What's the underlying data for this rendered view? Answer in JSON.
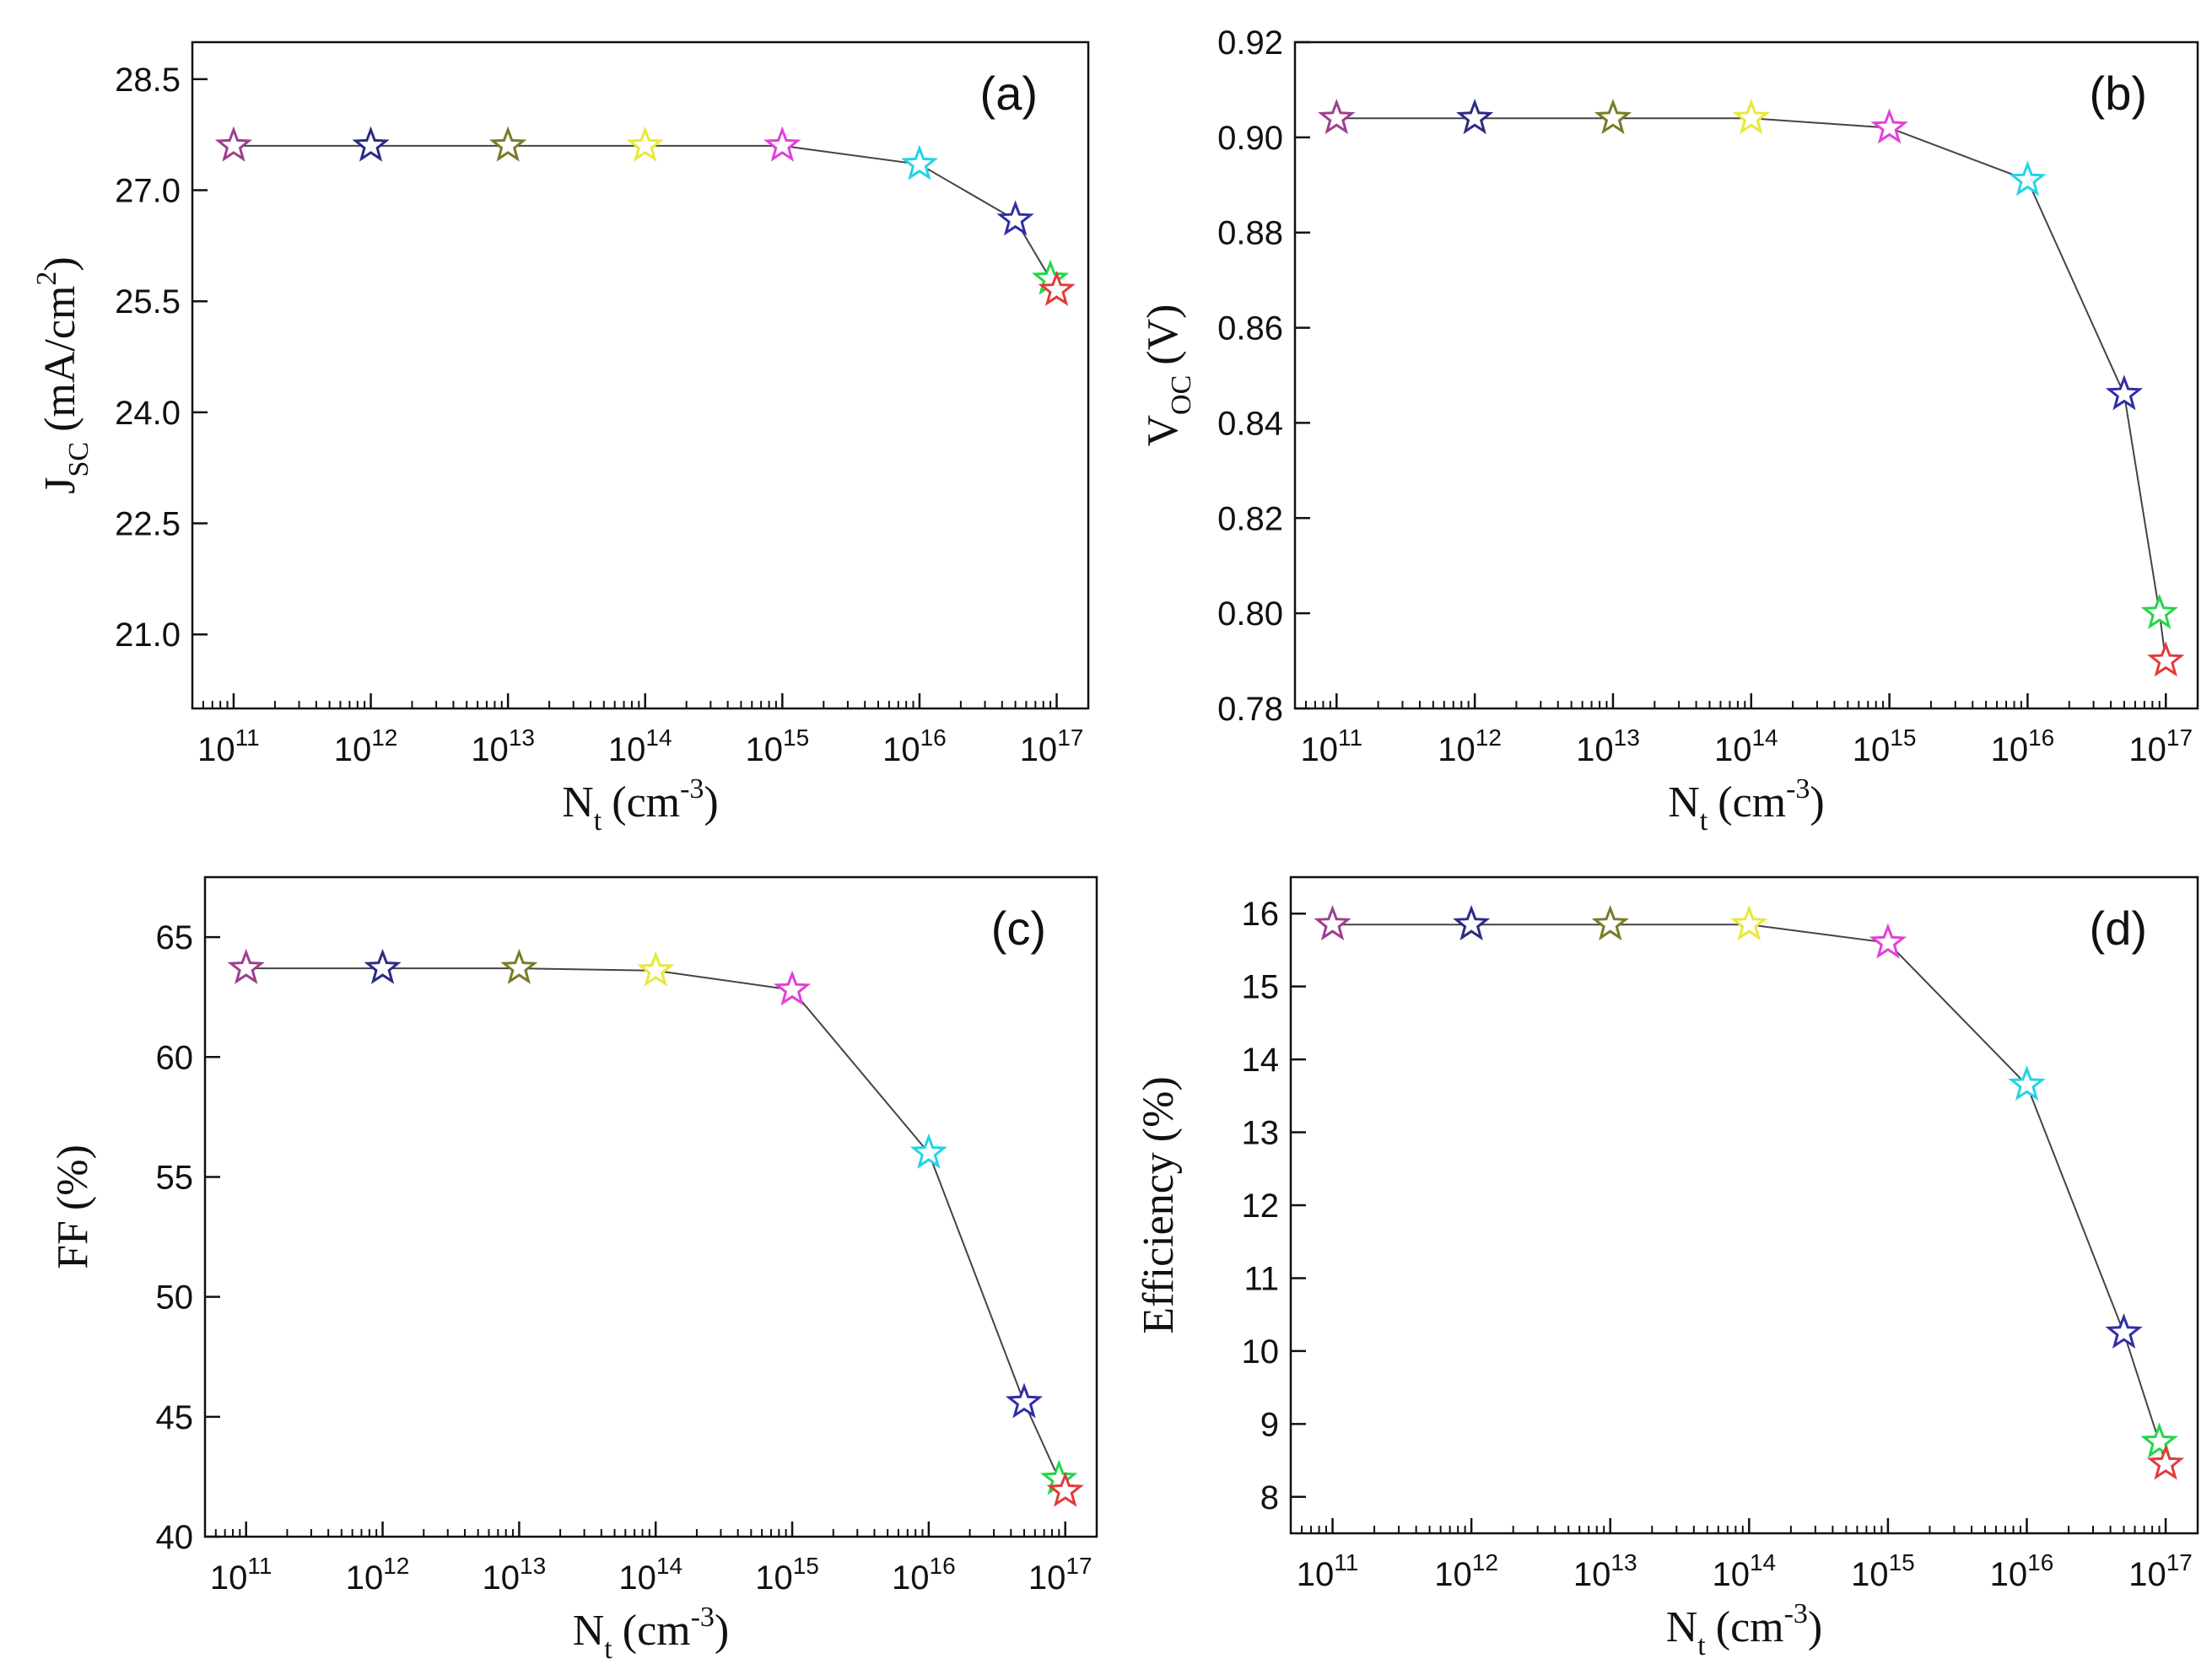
{
  "chart_data": [
    {
      "type": "line",
      "panel_label": "(a)",
      "xlabel": "N_t (cm^-3)",
      "xlabel_main": "N",
      "xlabel_sub": "t",
      "xlabel_unit": "(cm",
      "xlabel_sup": "-3",
      "xlabel_close": ")",
      "ylabel": "J_SC (mA/cm^2)",
      "ylabel_main": "J",
      "ylabel_sub": "SC",
      "ylabel_unit": "(mA/cm",
      "ylabel_sup": "2",
      "ylabel_close": ")",
      "xscale": "log",
      "xlim": [
        50000000000.0,
        1.7e+17
      ],
      "ylim": [
        20.0,
        29.0
      ],
      "xticks": [
        100000000000.0,
        1000000000000.0,
        10000000000000.0,
        100000000000000.0,
        1000000000000000.0,
        1e+16,
        1e+17
      ],
      "xtick_labels": [
        {
          "base": "10",
          "exp": "11"
        },
        {
          "base": "10",
          "exp": "12"
        },
        {
          "base": "10",
          "exp": "13"
        },
        {
          "base": "10",
          "exp": "14"
        },
        {
          "base": "10",
          "exp": "15"
        },
        {
          "base": "10",
          "exp": "16"
        },
        {
          "base": "10",
          "exp": "17"
        }
      ],
      "yticks": [
        21.0,
        22.5,
        24.0,
        25.5,
        27.0,
        28.5
      ],
      "ytick_labels": [
        "21.0",
        "22.5",
        "24.0",
        "25.5",
        "27.0",
        "28.5"
      ],
      "x": [
        100000000000.0,
        1000000000000.0,
        10000000000000.0,
        100000000000000.0,
        1000000000000000.0,
        1e+16,
        5e+16,
        9e+16,
        1e+17
      ],
      "values": [
        27.6,
        27.6,
        27.6,
        27.6,
        27.6,
        27.35,
        26.6,
        25.8,
        25.65
      ]
    },
    {
      "type": "line",
      "panel_label": "(b)",
      "xlabel": "N_t (cm^-3)",
      "xlabel_main": "N",
      "xlabel_sub": "t",
      "xlabel_unit": "(cm",
      "xlabel_sup": "-3",
      "xlabel_close": ")",
      "ylabel": "V_OC (V)",
      "ylabel_main": "V",
      "ylabel_sub": "OC",
      "ylabel_unit": "(V)",
      "xscale": "log",
      "xlim": [
        50000000000.0,
        1.7e+17
      ],
      "ylim": [
        0.78,
        0.92
      ],
      "xticks": [
        100000000000.0,
        1000000000000.0,
        10000000000000.0,
        100000000000000.0,
        1000000000000000.0,
        1e+16,
        1e+17
      ],
      "xtick_labels": [
        {
          "base": "10",
          "exp": "11"
        },
        {
          "base": "10",
          "exp": "12"
        },
        {
          "base": "10",
          "exp": "13"
        },
        {
          "base": "10",
          "exp": "14"
        },
        {
          "base": "10",
          "exp": "15"
        },
        {
          "base": "10",
          "exp": "16"
        },
        {
          "base": "10",
          "exp": "17"
        }
      ],
      "yticks": [
        0.78,
        0.8,
        0.82,
        0.84,
        0.86,
        0.88,
        0.9,
        0.92
      ],
      "ytick_labels": [
        "0.78",
        "0.80",
        "0.82",
        "0.84",
        "0.86",
        "0.88",
        "0.90",
        "0.92"
      ],
      "x": [
        100000000000.0,
        1000000000000.0,
        10000000000000.0,
        100000000000000.0,
        1000000000000000.0,
        1e+16,
        5e+16,
        9e+16,
        1e+17
      ],
      "values": [
        0.904,
        0.904,
        0.904,
        0.904,
        0.902,
        0.891,
        0.846,
        0.8,
        0.79
      ]
    },
    {
      "type": "line",
      "panel_label": "(c)",
      "xlabel": "N_t (cm^-3)",
      "xlabel_main": "N",
      "xlabel_sub": "t",
      "xlabel_unit": "(cm",
      "xlabel_sup": "-3",
      "xlabel_close": ")",
      "ylabel": "FF (%)",
      "ylabel_main": "FF",
      "ylabel_unit": "(%)",
      "xscale": "log",
      "xlim": [
        50000000000.0,
        1.7e+17
      ],
      "ylim": [
        40,
        67.5
      ],
      "xticks": [
        100000000000.0,
        1000000000000.0,
        10000000000000.0,
        100000000000000.0,
        1000000000000000.0,
        1e+16,
        1e+17
      ],
      "xtick_labels": [
        {
          "base": "10",
          "exp": "11"
        },
        {
          "base": "10",
          "exp": "12"
        },
        {
          "base": "10",
          "exp": "13"
        },
        {
          "base": "10",
          "exp": "14"
        },
        {
          "base": "10",
          "exp": "15"
        },
        {
          "base": "10",
          "exp": "16"
        },
        {
          "base": "10",
          "exp": "17"
        }
      ],
      "yticks": [
        40,
        45,
        50,
        55,
        60,
        65
      ],
      "ytick_labels": [
        "40",
        "45",
        "50",
        "55",
        "60",
        "65"
      ],
      "x": [
        100000000000.0,
        1000000000000.0,
        10000000000000.0,
        100000000000000.0,
        1000000000000000.0,
        1e+16,
        5e+16,
        9e+16,
        1e+17
      ],
      "values": [
        63.7,
        63.7,
        63.7,
        63.6,
        62.8,
        56.0,
        45.6,
        42.4,
        41.9
      ]
    },
    {
      "type": "line",
      "panel_label": "(d)",
      "xlabel": "N_t (cm^-3)",
      "xlabel_main": "N",
      "xlabel_sub": "t",
      "xlabel_unit": "(cm",
      "xlabel_sup": "-3",
      "xlabel_close": ")",
      "ylabel": "Efficiency (%)",
      "ylabel_main": "Efficiency",
      "ylabel_unit": "(%)",
      "xscale": "log",
      "xlim": [
        50000000000.0,
        1.7e+17
      ],
      "ylim": [
        7.5,
        16.5
      ],
      "xticks": [
        100000000000.0,
        1000000000000.0,
        10000000000000.0,
        100000000000000.0,
        1000000000000000.0,
        1e+16,
        1e+17
      ],
      "xtick_labels": [
        {
          "base": "10",
          "exp": "11"
        },
        {
          "base": "10",
          "exp": "12"
        },
        {
          "base": "10",
          "exp": "13"
        },
        {
          "base": "10",
          "exp": "14"
        },
        {
          "base": "10",
          "exp": "15"
        },
        {
          "base": "10",
          "exp": "16"
        },
        {
          "base": "10",
          "exp": "17"
        }
      ],
      "yticks": [
        8,
        9,
        10,
        11,
        12,
        13,
        14,
        15,
        16
      ],
      "ytick_labels": [
        "8",
        "9",
        "10",
        "11",
        "12",
        "13",
        "14",
        "15",
        "16"
      ],
      "x": [
        100000000000.0,
        1000000000000.0,
        10000000000000.0,
        100000000000000.0,
        1000000000000000.0,
        1e+16,
        5e+16,
        9e+16,
        1e+17
      ],
      "values": [
        15.85,
        15.85,
        15.85,
        15.85,
        15.6,
        13.65,
        10.25,
        8.75,
        8.45
      ]
    }
  ],
  "style": {
    "marker_colors": [
      "#9c3f8e",
      "#2b2b86",
      "#7a7a2a",
      "#e8e83a",
      "#e43fd8",
      "#22d4e6",
      "#2e2ea8",
      "#22d64a",
      "#e23a3a"
    ],
    "line_color": "#444444",
    "axis_color": "#111111",
    "marker_shape": "open-star"
  }
}
